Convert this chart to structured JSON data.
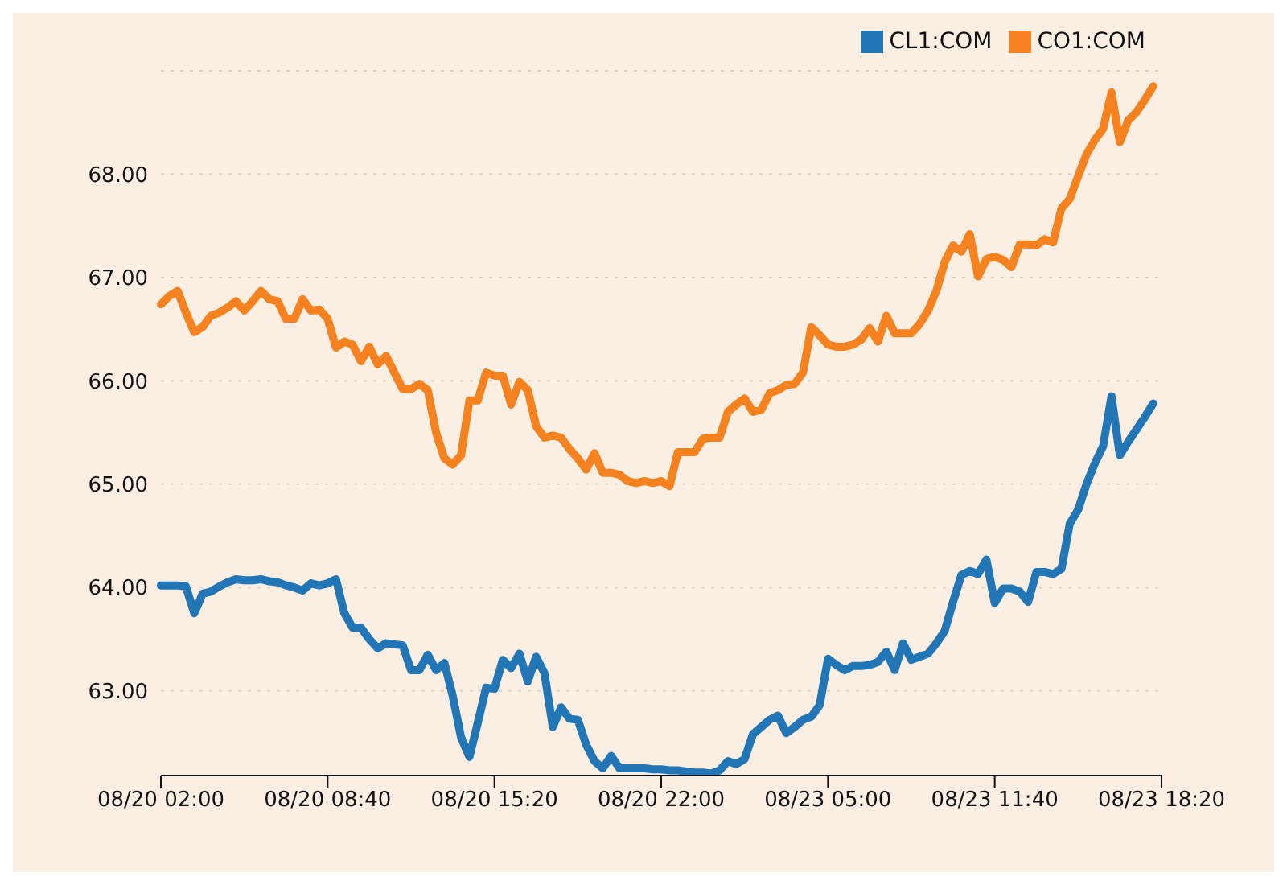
{
  "chart_data": {
    "type": "line",
    "categories": [
      "08/20 02:00",
      null,
      null,
      null,
      null,
      null,
      null,
      null,
      null,
      null,
      null,
      null,
      null,
      null,
      null,
      null,
      null,
      null,
      null,
      null,
      "08/20 08:40",
      null,
      null,
      null,
      null,
      null,
      null,
      null,
      null,
      null,
      null,
      null,
      null,
      null,
      null,
      null,
      null,
      null,
      null,
      null,
      "08/20 15:20",
      null,
      null,
      null,
      null,
      null,
      null,
      null,
      null,
      null,
      null,
      null,
      null,
      null,
      null,
      null,
      null,
      null,
      null,
      null,
      "08/20 22:00",
      null,
      null,
      null,
      null,
      null,
      null,
      null,
      null,
      null,
      null,
      null,
      null,
      null,
      null,
      null,
      null,
      null,
      null,
      null,
      "08/23 05:00",
      null,
      null,
      null,
      null,
      null,
      null,
      null,
      null,
      null,
      null,
      null,
      null,
      null,
      null,
      null,
      null,
      null,
      null,
      null,
      "08/23 11:40",
      null,
      null,
      null,
      null,
      null,
      null,
      null,
      null,
      null,
      null,
      null,
      null,
      null,
      null,
      null,
      null,
      null,
      null,
      null,
      "08/23 18:20"
    ],
    "ylim": [
      62.18,
      69
    ],
    "yticks": [
      {
        "value": 63,
        "label": "63.00"
      },
      {
        "value": 64,
        "label": "64.00"
      },
      {
        "value": 65,
        "label": "65.00"
      },
      {
        "value": 66,
        "label": "66.00"
      },
      {
        "value": 67,
        "label": "67.00"
      },
      {
        "value": 68,
        "label": "68.00"
      }
    ],
    "grid": "y",
    "legend": "top right",
    "marker": "none",
    "line_style": "solid",
    "series": [
      {
        "name": "CL1:COM",
        "color": "#2276b6",
        "values": [
          64.02,
          64.02,
          64.02,
          64.01,
          63.75,
          63.94,
          63.96,
          64.01,
          64.05,
          64.08,
          64.07,
          64.07,
          64.08,
          64.06,
          64.05,
          64.02,
          64.0,
          63.97,
          64.04,
          64.02,
          64.04,
          64.08,
          63.75,
          63.61,
          63.61,
          63.5,
          63.41,
          63.46,
          63.45,
          63.44,
          63.2,
          63.2,
          63.35,
          63.2,
          63.27,
          62.95,
          62.55,
          62.36,
          62.69,
          63.03,
          63.02,
          63.3,
          63.22,
          63.36,
          63.09,
          63.33,
          63.17,
          62.65,
          62.84,
          62.73,
          62.72,
          62.48,
          62.32,
          62.25,
          62.37,
          62.25,
          62.25,
          62.25,
          62.25,
          62.24,
          62.24,
          62.23,
          62.23,
          62.22,
          62.21,
          62.21,
          62.2,
          62.23,
          62.32,
          62.29,
          62.34,
          62.58,
          62.65,
          62.72,
          62.76,
          62.59,
          62.65,
          62.72,
          62.75,
          62.86,
          63.31,
          63.25,
          63.2,
          63.24,
          63.24,
          63.25,
          63.28,
          63.38,
          63.2,
          63.46,
          63.3,
          63.33,
          63.36,
          63.46,
          63.58,
          63.86,
          64.12,
          64.16,
          64.13,
          64.27,
          63.85,
          63.99,
          63.99,
          63.96,
          63.86,
          64.15,
          64.15,
          64.13,
          64.18,
          64.62,
          64.75,
          65.0,
          65.2,
          65.37,
          65.85,
          65.28,
          65.41,
          65.53,
          65.65,
          65.78,
          null
        ]
      },
      {
        "name": "CO1:COM",
        "color": "#f5821f",
        "values": [
          66.74,
          66.82,
          66.87,
          66.66,
          66.47,
          66.52,
          66.63,
          66.66,
          66.71,
          66.77,
          66.68,
          66.77,
          66.87,
          66.79,
          66.77,
          66.6,
          66.6,
          66.79,
          66.68,
          66.69,
          66.6,
          66.32,
          66.38,
          66.35,
          66.19,
          66.33,
          66.16,
          66.24,
          66.08,
          65.92,
          65.92,
          65.97,
          65.91,
          65.5,
          65.25,
          65.19,
          65.28,
          65.81,
          65.81,
          66.08,
          66.05,
          66.05,
          65.77,
          65.99,
          65.91,
          65.56,
          65.45,
          65.47,
          65.45,
          65.34,
          65.25,
          65.14,
          65.3,
          65.11,
          65.11,
          65.09,
          65.03,
          65.01,
          65.03,
          65.01,
          65.03,
          64.98,
          65.31,
          65.31,
          65.31,
          65.44,
          65.45,
          65.45,
          65.7,
          65.77,
          65.83,
          65.7,
          65.72,
          65.88,
          65.91,
          65.96,
          65.97,
          66.08,
          66.52,
          66.44,
          66.35,
          66.33,
          66.33,
          66.35,
          66.4,
          66.51,
          66.38,
          66.63,
          66.46,
          66.46,
          66.46,
          66.55,
          66.68,
          66.87,
          67.15,
          67.31,
          67.25,
          67.42,
          67.01,
          67.18,
          67.2,
          67.17,
          67.1,
          67.32,
          67.32,
          67.31,
          67.37,
          67.34,
          67.67,
          67.76,
          67.98,
          68.19,
          68.33,
          68.44,
          68.79,
          68.31,
          68.52,
          68.6,
          68.72,
          68.85,
          null
        ]
      }
    ]
  }
}
